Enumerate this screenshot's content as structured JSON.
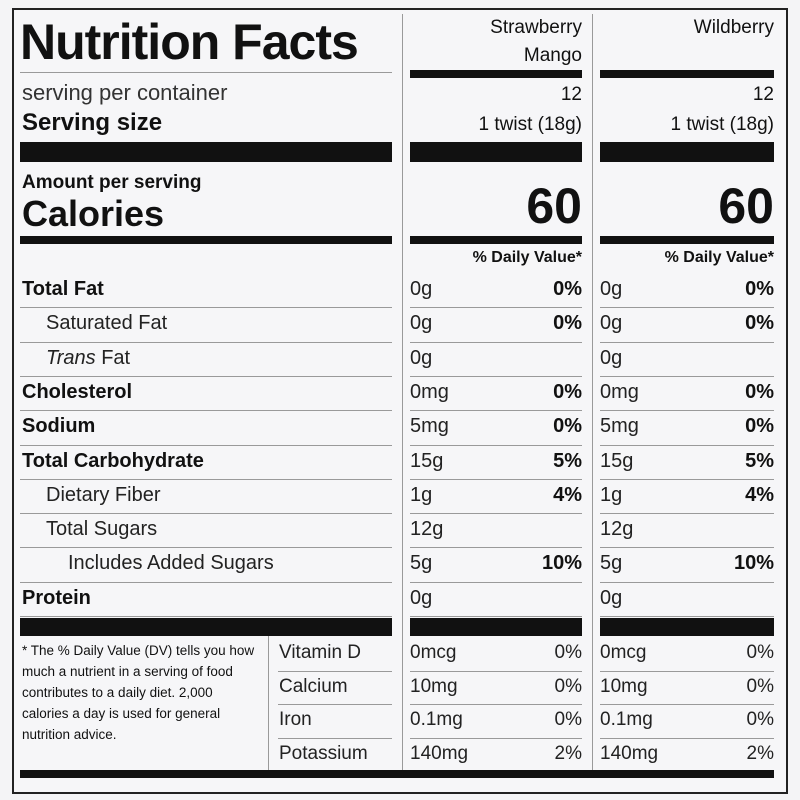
{
  "title": "Nutrition Facts",
  "columns": [
    {
      "name_line1": "Strawberry",
      "name_line2": "Mango",
      "servings": "12",
      "serving_size": "1 twist (18g)",
      "calories": "60"
    },
    {
      "name_line1": "Wildberry",
      "name_line2": "",
      "servings": "12",
      "serving_size": "1 twist (18g)",
      "calories": "60"
    }
  ],
  "labels": {
    "servings_per_container": "serving per container",
    "serving_size": "Serving size",
    "amount_per_serving": "Amount per serving",
    "calories": "Calories",
    "daily_value": "% Daily Value*"
  },
  "nutrients": [
    {
      "name": "Total Fat",
      "bold": true,
      "indent": 0,
      "italic_prefix": "",
      "v1": "0g",
      "p1": "0%",
      "v2": "0g",
      "p2": "0%"
    },
    {
      "name": "Saturated Fat",
      "bold": false,
      "indent": 1,
      "italic_prefix": "",
      "v1": "0g",
      "p1": "0%",
      "v2": "0g",
      "p2": "0%"
    },
    {
      "name": " Fat",
      "bold": false,
      "indent": 1,
      "italic_prefix": "Trans",
      "v1": "0g",
      "p1": "",
      "v2": "0g",
      "p2": ""
    },
    {
      "name": "Cholesterol",
      "bold": true,
      "indent": 0,
      "italic_prefix": "",
      "v1": "0mg",
      "p1": "0%",
      "v2": "0mg",
      "p2": "0%"
    },
    {
      "name": "Sodium",
      "bold": true,
      "indent": 0,
      "italic_prefix": "",
      "v1": "5mg",
      "p1": "0%",
      "v2": "5mg",
      "p2": "0%"
    },
    {
      "name": "Total Carbohydrate",
      "bold": true,
      "indent": 0,
      "italic_prefix": "",
      "v1": "15g",
      "p1": "5%",
      "v2": "15g",
      "p2": "5%"
    },
    {
      "name": "Dietary Fiber",
      "bold": false,
      "indent": 1,
      "italic_prefix": "",
      "v1": "1g",
      "p1": "4%",
      "v2": "1g",
      "p2": "4%"
    },
    {
      "name": "Total Sugars",
      "bold": false,
      "indent": 1,
      "italic_prefix": "",
      "v1": "12g",
      "p1": "",
      "v2": "12g",
      "p2": ""
    },
    {
      "name": "Includes Added Sugars",
      "bold": false,
      "indent": 2,
      "italic_prefix": "",
      "v1": "5g",
      "p1": "10%",
      "v2": "5g",
      "p2": "10%"
    },
    {
      "name": "Protein",
      "bold": true,
      "indent": 0,
      "italic_prefix": "",
      "v1": "0g",
      "p1": "",
      "v2": "0g",
      "p2": ""
    }
  ],
  "vitamins": [
    {
      "name": "Vitamin D",
      "v1": "0mcg",
      "p1": "0%",
      "v2": "0mcg",
      "p2": "0%"
    },
    {
      "name": "Calcium",
      "v1": "10mg",
      "p1": "0%",
      "v2": "10mg",
      "p2": "0%"
    },
    {
      "name": "Iron",
      "v1": "0.1mg",
      "p1": "0%",
      "v2": "0.1mg",
      "p2": "0%"
    },
    {
      "name": "Potassium",
      "v1": "140mg",
      "p1": "2%",
      "v2": "140mg",
      "p2": "2%"
    }
  ],
  "footnote": "* The % Daily Value (DV) tells you how much a nutrient in a serving of food contributes to a daily diet. 2,000 calories a day is used for general nutrition advice."
}
